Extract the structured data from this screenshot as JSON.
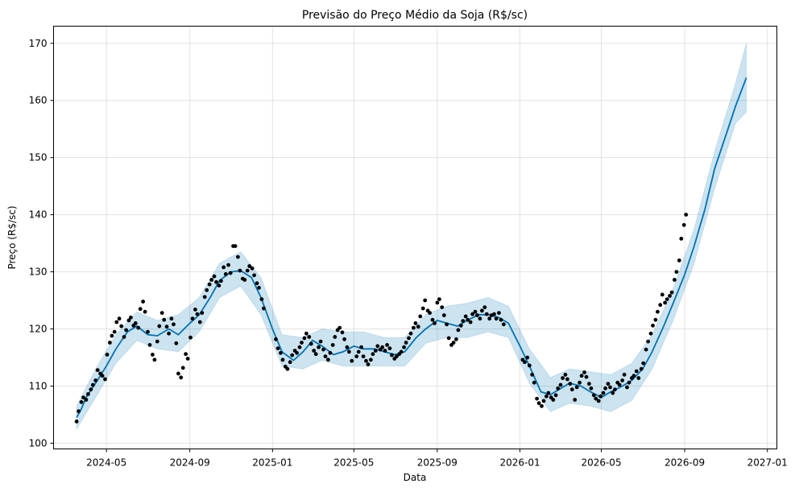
{
  "chart_data": {
    "type": "line",
    "title": "Previsão do Preço Médio da Soja (R$/sc)",
    "xlabel": "Data",
    "ylabel": "Preço (R$/sc)",
    "xlim": [
      "2024-02-13",
      "2027-01-15"
    ],
    "ylim": [
      99,
      173
    ],
    "grid": true,
    "colors": {
      "forecast": "#0072B2",
      "band": "#0072B2",
      "observed": "#000000"
    },
    "x_ticks": [
      {
        "date": "2024-05-01",
        "label": "2024-05"
      },
      {
        "date": "2024-09-01",
        "label": "2024-09"
      },
      {
        "date": "2025-01-01",
        "label": "2025-01"
      },
      {
        "date": "2025-05-01",
        "label": "2025-05"
      },
      {
        "date": "2025-09-01",
        "label": "2025-09"
      },
      {
        "date": "2026-01-01",
        "label": "2026-01"
      },
      {
        "date": "2026-05-01",
        "label": "2026-05"
      },
      {
        "date": "2026-09-01",
        "label": "2026-09"
      },
      {
        "date": "2027-01-01",
        "label": "2027-01"
      }
    ],
    "y_ticks": [
      100,
      110,
      120,
      130,
      140,
      150,
      160,
      170
    ],
    "series": [
      {
        "role": "forecast",
        "x": [
          "2024-03-18",
          "2024-03-25",
          "2024-04-01",
          "2024-04-15",
          "2024-05-01",
          "2024-05-15",
          "2024-06-01",
          "2024-06-15",
          "2024-07-01",
          "2024-07-15",
          "2024-08-01",
          "2024-08-15",
          "2024-09-01",
          "2024-09-15",
          "2024-10-01",
          "2024-10-15",
          "2024-11-01",
          "2024-11-15",
          "2024-12-01",
          "2024-12-15",
          "2025-01-01",
          "2025-01-15",
          "2025-02-01",
          "2025-02-15",
          "2025-03-01",
          "2025-03-15",
          "2025-04-01",
          "2025-04-15",
          "2025-05-01",
          "2025-05-15",
          "2025-06-01",
          "2025-06-15",
          "2025-07-01",
          "2025-07-15",
          "2025-08-01",
          "2025-08-15",
          "2025-09-01",
          "2025-09-15",
          "2025-10-01",
          "2025-10-15",
          "2025-11-01",
          "2025-11-15",
          "2025-12-01",
          "2025-12-15",
          "2026-01-01",
          "2026-01-15",
          "2026-02-01",
          "2026-02-15",
          "2026-03-01",
          "2026-03-15",
          "2026-04-01",
          "2026-04-15",
          "2026-05-01",
          "2026-05-15",
          "2026-06-01",
          "2026-06-15",
          "2026-07-01",
          "2026-07-15",
          "2026-08-01",
          "2026-08-15",
          "2026-09-01",
          "2026-09-15",
          "2026-10-01",
          "2026-10-15",
          "2026-11-01",
          "2026-11-15",
          "2026-12-01"
        ],
        "values": [
          104.5,
          106,
          108,
          110.5,
          113.5,
          116.5,
          119.5,
          120.5,
          119,
          118.8,
          120,
          119,
          121,
          122.5,
          125.5,
          128.5,
          130,
          130.2,
          129,
          125.5,
          120,
          116,
          114.5,
          116,
          118,
          117,
          115.5,
          116,
          117,
          116.5,
          116.5,
          116,
          115.5,
          116,
          118.5,
          120,
          121.5,
          121,
          120.5,
          121.5,
          122.5,
          122.5,
          122,
          121,
          117,
          113.5,
          109,
          108.5,
          109.5,
          110.5,
          110,
          109,
          108,
          109,
          110,
          111,
          113,
          116,
          120.5,
          124.5,
          129.5,
          134.5,
          141,
          148,
          154,
          159,
          164
        ]
      },
      {
        "role": "uncertainty",
        "x": [
          "2024-03-18",
          "2024-04-15",
          "2024-05-15",
          "2024-06-15",
          "2024-07-15",
          "2024-08-15",
          "2024-09-15",
          "2024-10-15",
          "2024-11-15",
          "2024-12-15",
          "2025-01-15",
          "2025-02-15",
          "2025-03-15",
          "2025-04-15",
          "2025-05-15",
          "2025-06-15",
          "2025-07-15",
          "2025-08-15",
          "2025-09-15",
          "2025-10-15",
          "2025-11-15",
          "2025-12-15",
          "2026-01-15",
          "2026-02-15",
          "2026-03-15",
          "2026-04-15",
          "2026-05-15",
          "2026-06-15",
          "2026-07-15",
          "2026-08-15",
          "2026-09-15",
          "2026-10-15",
          "2026-11-15",
          "2026-12-01"
        ],
        "upper": [
          106.5,
          113,
          119,
          123,
          121.5,
          122.5,
          125.5,
          131.5,
          133.5,
          129,
          119,
          118.5,
          120,
          119.5,
          119.5,
          118.5,
          118.5,
          122.5,
          124,
          124.5,
          125.5,
          124,
          116.5,
          111.5,
          113,
          112.5,
          112,
          114,
          119,
          127,
          137.5,
          151,
          163,
          170
        ],
        "lower": [
          102.5,
          108,
          114,
          118,
          116.5,
          116,
          119.5,
          125.5,
          127.5,
          122.5,
          113.5,
          113,
          114.5,
          113.5,
          113.5,
          113.5,
          113.5,
          117.5,
          118.5,
          118.5,
          119.5,
          118.5,
          110.5,
          105.5,
          107,
          106.5,
          105.5,
          107.5,
          113,
          121.5,
          131.5,
          144.5,
          156,
          158
        ]
      },
      {
        "role": "observed",
        "x": [
          "2024-03-18",
          "2024-03-21",
          "2024-03-25",
          "2024-03-28",
          "2024-04-01",
          "2024-04-04",
          "2024-04-08",
          "2024-04-11",
          "2024-04-15",
          "2024-04-18",
          "2024-04-22",
          "2024-04-25",
          "2024-04-29",
          "2024-05-02",
          "2024-05-06",
          "2024-05-09",
          "2024-05-13",
          "2024-05-16",
          "2024-05-20",
          "2024-05-23",
          "2024-05-27",
          "2024-05-30",
          "2024-06-03",
          "2024-06-06",
          "2024-06-10",
          "2024-06-13",
          "2024-06-17",
          "2024-06-20",
          "2024-06-24",
          "2024-06-27",
          "2024-07-01",
          "2024-07-04",
          "2024-07-08",
          "2024-07-11",
          "2024-07-15",
          "2024-07-18",
          "2024-07-22",
          "2024-07-25",
          "2024-07-29",
          "2024-08-01",
          "2024-08-05",
          "2024-08-08",
          "2024-08-12",
          "2024-08-15",
          "2024-08-19",
          "2024-08-22",
          "2024-08-26",
          "2024-08-29",
          "2024-09-02",
          "2024-09-05",
          "2024-09-09",
          "2024-09-12",
          "2024-09-16",
          "2024-09-19",
          "2024-09-23",
          "2024-09-26",
          "2024-09-30",
          "2024-10-03",
          "2024-10-07",
          "2024-10-10",
          "2024-10-14",
          "2024-10-17",
          "2024-10-21",
          "2024-10-24",
          "2024-10-28",
          "2024-10-31",
          "2024-11-04",
          "2024-11-07",
          "2024-11-11",
          "2024-11-14",
          "2024-11-18",
          "2024-11-21",
          "2024-11-25",
          "2024-11-28",
          "2024-12-02",
          "2024-12-05",
          "2024-12-09",
          "2024-12-12",
          "2024-12-16",
          "2024-12-19",
          "2025-01-06",
          "2025-01-09",
          "2025-01-13",
          "2025-01-16",
          "2025-01-20",
          "2025-01-23",
          "2025-01-27",
          "2025-01-30",
          "2025-02-03",
          "2025-02-06",
          "2025-02-10",
          "2025-02-13",
          "2025-02-17",
          "2025-02-20",
          "2025-02-24",
          "2025-02-27",
          "2025-03-03",
          "2025-03-06",
          "2025-03-10",
          "2025-03-13",
          "2025-03-17",
          "2025-03-20",
          "2025-03-24",
          "2025-03-27",
          "2025-03-31",
          "2025-04-03",
          "2025-04-07",
          "2025-04-10",
          "2025-04-14",
          "2025-04-17",
          "2025-04-21",
          "2025-04-24",
          "2025-04-28",
          "2025-05-05",
          "2025-05-08",
          "2025-05-12",
          "2025-05-15",
          "2025-05-19",
          "2025-05-22",
          "2025-05-26",
          "2025-05-29",
          "2025-06-02",
          "2025-06-05",
          "2025-06-09",
          "2025-06-12",
          "2025-06-16",
          "2025-06-19",
          "2025-06-23",
          "2025-06-26",
          "2025-06-30",
          "2025-07-03",
          "2025-07-07",
          "2025-07-10",
          "2025-07-14",
          "2025-07-17",
          "2025-07-21",
          "2025-07-24",
          "2025-07-28",
          "2025-07-31",
          "2025-08-04",
          "2025-08-07",
          "2025-08-11",
          "2025-08-14",
          "2025-08-18",
          "2025-08-21",
          "2025-08-25",
          "2025-08-28",
          "2025-09-01",
          "2025-09-04",
          "2025-09-08",
          "2025-09-11",
          "2025-09-15",
          "2025-09-18",
          "2025-09-22",
          "2025-09-25",
          "2025-09-29",
          "2025-10-02",
          "2025-10-06",
          "2025-10-09",
          "2025-10-13",
          "2025-10-16",
          "2025-10-20",
          "2025-10-23",
          "2025-10-27",
          "2025-10-30",
          "2025-11-03",
          "2025-11-06",
          "2025-11-10",
          "2025-11-13",
          "2025-11-17",
          "2025-11-20",
          "2025-11-24",
          "2025-11-27",
          "2025-12-01",
          "2025-12-04",
          "2025-12-08",
          "2026-01-05",
          "2026-01-08",
          "2026-01-12",
          "2026-01-15",
          "2026-01-19",
          "2026-01-22",
          "2026-01-26",
          "2026-01-29",
          "2026-02-02",
          "2026-02-05",
          "2026-02-09",
          "2026-02-12",
          "2026-02-16",
          "2026-02-19",
          "2026-02-23",
          "2026-02-26",
          "2026-03-02",
          "2026-03-05",
          "2026-03-09",
          "2026-03-12",
          "2026-03-16",
          "2026-03-19",
          "2026-03-23",
          "2026-03-26",
          "2026-03-30",
          "2026-04-02",
          "2026-04-06",
          "2026-04-09",
          "2026-04-13",
          "2026-04-16",
          "2026-04-20",
          "2026-04-23",
          "2026-04-27",
          "2026-04-30",
          "2026-05-04",
          "2026-05-07",
          "2026-05-11",
          "2026-05-14",
          "2026-05-18",
          "2026-05-21",
          "2026-05-25",
          "2026-05-28",
          "2026-06-01",
          "2026-06-04",
          "2026-06-08",
          "2026-06-11",
          "2026-06-15",
          "2026-06-18",
          "2026-06-22",
          "2026-06-25",
          "2026-06-29",
          "2026-07-02",
          "2026-07-06",
          "2026-07-09",
          "2026-07-13",
          "2026-07-16",
          "2026-07-20",
          "2026-07-23",
          "2026-07-27",
          "2026-07-30",
          "2026-08-03",
          "2026-08-06",
          "2026-08-10",
          "2026-08-13",
          "2026-08-17",
          "2026-08-20",
          "2026-08-24",
          "2026-08-27",
          "2026-08-31",
          "2026-09-03"
        ],
        "values": [
          103.8,
          105.6,
          107.2,
          108.0,
          107.6,
          108.6,
          109.4,
          110.2,
          111.0,
          112.8,
          112.2,
          111.8,
          111.2,
          115.5,
          117.6,
          118.8,
          119.5,
          121.2,
          121.8,
          120.5,
          118.6,
          119.8,
          121.5,
          122.0,
          120.6,
          121.0,
          120.2,
          123.5,
          124.8,
          123.0,
          119.5,
          117.2,
          115.5,
          114.6,
          117.8,
          120.5,
          122.8,
          121.6,
          120.4,
          119.2,
          121.8,
          120.8,
          117.5,
          112.2,
          111.5,
          113.2,
          115.6,
          114.8,
          118.5,
          121.8,
          123.4,
          122.6,
          121.2,
          122.8,
          125.6,
          126.8,
          127.8,
          128.6,
          129.2,
          128.2,
          127.6,
          128.4,
          130.8,
          129.6,
          131.2,
          129.8,
          134.5,
          134.5,
          132.6,
          130.2,
          128.8,
          128.6,
          130.2,
          131.0,
          130.6,
          129.4,
          128.0,
          127.2,
          125.2,
          123.6,
          118.2,
          116.6,
          115.8,
          114.6,
          113.4,
          113.0,
          114.2,
          115.4,
          116.2,
          115.8,
          116.8,
          117.6,
          118.4,
          119.2,
          118.6,
          117.4,
          116.2,
          115.6,
          116.8,
          117.8,
          116.4,
          115.2,
          114.6,
          115.8,
          117.2,
          118.6,
          119.8,
          120.2,
          119.4,
          118.2,
          116.8,
          116.0,
          114.4,
          115.2,
          116.0,
          116.8,
          115.2,
          114.4,
          113.8,
          114.6,
          115.6,
          116.2,
          117.0,
          116.4,
          116.8,
          116.2,
          117.2,
          116.6,
          115.4,
          114.8,
          115.2,
          115.6,
          116.0,
          116.8,
          117.6,
          118.4,
          119.2,
          120.2,
          121.0,
          120.4,
          122.2,
          123.6,
          125.0,
          123.2,
          122.8,
          121.6,
          121.0,
          124.6,
          125.2,
          123.8,
          122.4,
          120.8,
          118.4,
          117.2,
          117.6,
          118.2,
          119.8,
          120.6,
          121.4,
          122.2,
          121.6,
          121.2,
          122.6,
          123.0,
          122.4,
          121.8,
          123.2,
          123.8,
          122.6,
          121.8,
          122.4,
          122.6,
          121.8,
          122.8,
          121.6,
          120.8,
          114.6,
          114.2,
          115.0,
          113.6,
          112.0,
          110.6,
          107.8,
          107.0,
          106.5,
          107.4,
          108.2,
          108.8,
          108.0,
          107.6,
          108.4,
          109.6,
          110.2,
          111.4,
          112.0,
          111.2,
          110.4,
          109.4,
          107.6,
          109.8,
          110.6,
          111.8,
          112.4,
          111.6,
          110.4,
          109.6,
          108.4,
          107.8,
          107.4,
          108.2,
          108.8,
          109.6,
          110.4,
          109.8,
          108.8,
          109.4,
          110.6,
          110.2,
          111.0,
          112.0,
          109.8,
          110.6,
          111.4,
          111.8,
          112.6,
          111.4,
          113.0,
          114.0,
          116.4,
          117.8,
          119.2,
          120.6,
          121.6,
          123.0,
          124.2,
          126.0,
          124.6,
          125.2,
          125.8,
          126.4,
          128.6,
          130.0,
          132.0,
          135.8,
          138.2,
          140.0
        ]
      }
    ]
  }
}
